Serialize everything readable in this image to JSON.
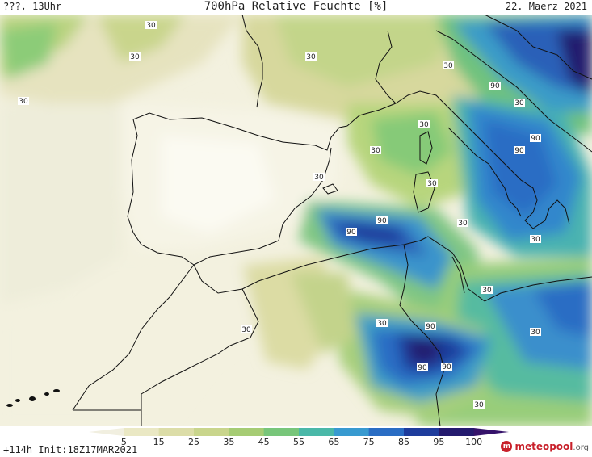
{
  "header": {
    "left": "???, 13Uhr",
    "title": "700hPa Relative Feuchte [%]",
    "date": "22. Maerz 2021"
  },
  "footer": {
    "init": "+114h  Init:18Z17MAR2021",
    "brand": "meteopool",
    "brand_suffix": ".org"
  },
  "legend": {
    "ticks": [
      "5",
      "15",
      "25",
      "35",
      "45",
      "55",
      "65",
      "75",
      "85",
      "95",
      "100"
    ],
    "colors": [
      "#f1efe0",
      "#eae8c4",
      "#dcdda8",
      "#c9d58c",
      "#a6cc74",
      "#78c67a",
      "#4ab8a8",
      "#389ad0",
      "#2a6dc4",
      "#1e3c9c",
      "#241a6e",
      "#35126a"
    ]
  },
  "map": {
    "contour_labels": [
      "30",
      "30",
      "30",
      "30",
      "30",
      "30",
      "30",
      "30",
      "30",
      "30",
      "30",
      "30",
      "30",
      "30",
      "30",
      "30",
      "30",
      "90",
      "90",
      "90",
      "90",
      "90",
      "90",
      "90",
      "90"
    ]
  }
}
